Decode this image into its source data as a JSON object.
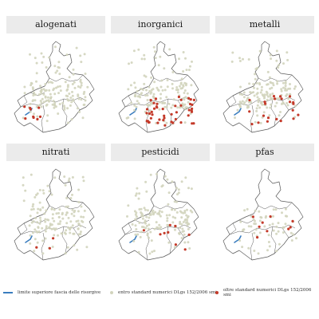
{
  "panels": [
    {
      "title": "alogenati"
    },
    {
      "title": "inorganici"
    },
    {
      "title": "metalli"
    },
    {
      "title": "nitrati"
    },
    {
      "title": "pesticidi"
    },
    {
      "title": "pfas"
    }
  ],
  "legend": {
    "line_label": "limite superiore fascia delle risorgive",
    "within_label": "entro standard numerici DLgs 152/2006 smi",
    "over_label": "oltre standard numerici DLgs 152/2006 smi"
  },
  "colors": {
    "within": "#d2d4bd",
    "over": "#c43a2a",
    "line": "#3a7dbf",
    "boundary": "#5a5a5a",
    "strip": "#ebebeb"
  },
  "exceedance_level": {
    "alogenati": "low",
    "inorganici": "high",
    "metalli": "medium",
    "nitrati": "very low",
    "pesticidi": "low",
    "pfas": "low"
  }
}
